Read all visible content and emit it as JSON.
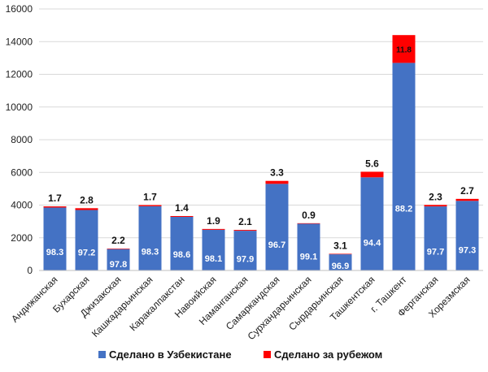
{
  "chart_data": {
    "type": "bar",
    "stacked": true,
    "categories": [
      "Андижанская",
      "Бухарская",
      "Джизакская",
      "Кашкадарьинская",
      "Каракалпакстан",
      "Навоийская",
      "Наманганская",
      "Самаркандская",
      "Сурхандарьинская",
      "Сырдарьинская",
      "Ташкентская",
      "г. Ташкент",
      "Ферганская",
      "Хорезмская"
    ],
    "series": [
      {
        "name": "Сделано в Узбекистане",
        "color": "#4472C4",
        "values": [
          3850,
          3700,
          1310,
          3930,
          3280,
          2490,
          2430,
          5300,
          2860,
          990,
          5700,
          12700,
          3920,
          4260
        ],
        "labels": [
          "98.3",
          "97.2",
          "97.8",
          "98.3",
          "98.6",
          "98.1",
          "97.9",
          "96.7",
          "99.1",
          "96.9",
          "94.4",
          "88.2",
          "97.7",
          "97.3"
        ]
      },
      {
        "name": "Сделано за рубежом",
        "color": "#FF0000",
        "values": [
          70,
          110,
          30,
          70,
          50,
          50,
          50,
          180,
          30,
          30,
          340,
          1700,
          90,
          120
        ],
        "labels": [
          "1.7",
          "2.8",
          "2.2",
          "1.7",
          "1.4",
          "1.9",
          "2.1",
          "3.3",
          "0.9",
          "3.1",
          "5.6",
          "11.8",
          "2.3",
          "2.7"
        ]
      }
    ],
    "y_ticks": [
      "0",
      "2000",
      "4000",
      "6000",
      "8000",
      "10000",
      "12000",
      "14000",
      "16000"
    ],
    "ylim": [
      0,
      16000
    ],
    "grid": true,
    "legend_position": "bottom"
  }
}
